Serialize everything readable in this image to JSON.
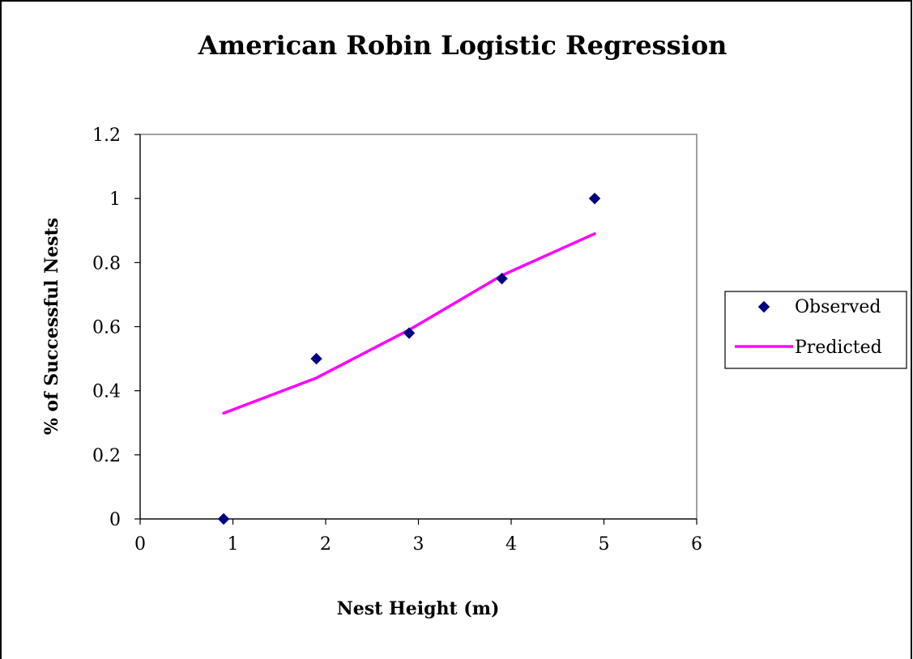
{
  "chart_data": {
    "type": "scatter",
    "title": "American Robin Logistic Regression",
    "xlabel": "Nest Height (m)",
    "ylabel": "% of Successful Nests",
    "xlim": [
      0,
      6
    ],
    "ylim": [
      0,
      1.2
    ],
    "x_ticks": [
      0,
      1,
      2,
      3,
      4,
      5,
      6
    ],
    "y_ticks": [
      0,
      0.2,
      0.4,
      0.6,
      0.8,
      1,
      1.2
    ],
    "x_tick_labels": [
      "0",
      "1",
      "2",
      "3",
      "4",
      "5",
      "6"
    ],
    "y_tick_labels": [
      "0",
      "0.2",
      "0.4",
      "0.6",
      "0.8",
      "1",
      "1.2"
    ],
    "grid": false,
    "legend_position": "right",
    "series": [
      {
        "name": "Observed",
        "type": "scatter",
        "marker": "diamond",
        "color": "#000080",
        "points": [
          {
            "x": 0.9,
            "y": 0.0
          },
          {
            "x": 1.9,
            "y": 0.5
          },
          {
            "x": 2.9,
            "y": 0.58
          },
          {
            "x": 3.9,
            "y": 0.75
          },
          {
            "x": 4.9,
            "y": 1.0
          }
        ]
      },
      {
        "name": "Predicted",
        "type": "line",
        "color": "#ff00ff",
        "points": [
          {
            "x": 0.9,
            "y": 0.33
          },
          {
            "x": 1.9,
            "y": 0.44
          },
          {
            "x": 2.9,
            "y": 0.59
          },
          {
            "x": 3.9,
            "y": 0.76
          },
          {
            "x": 4.9,
            "y": 0.89
          }
        ]
      }
    ]
  }
}
